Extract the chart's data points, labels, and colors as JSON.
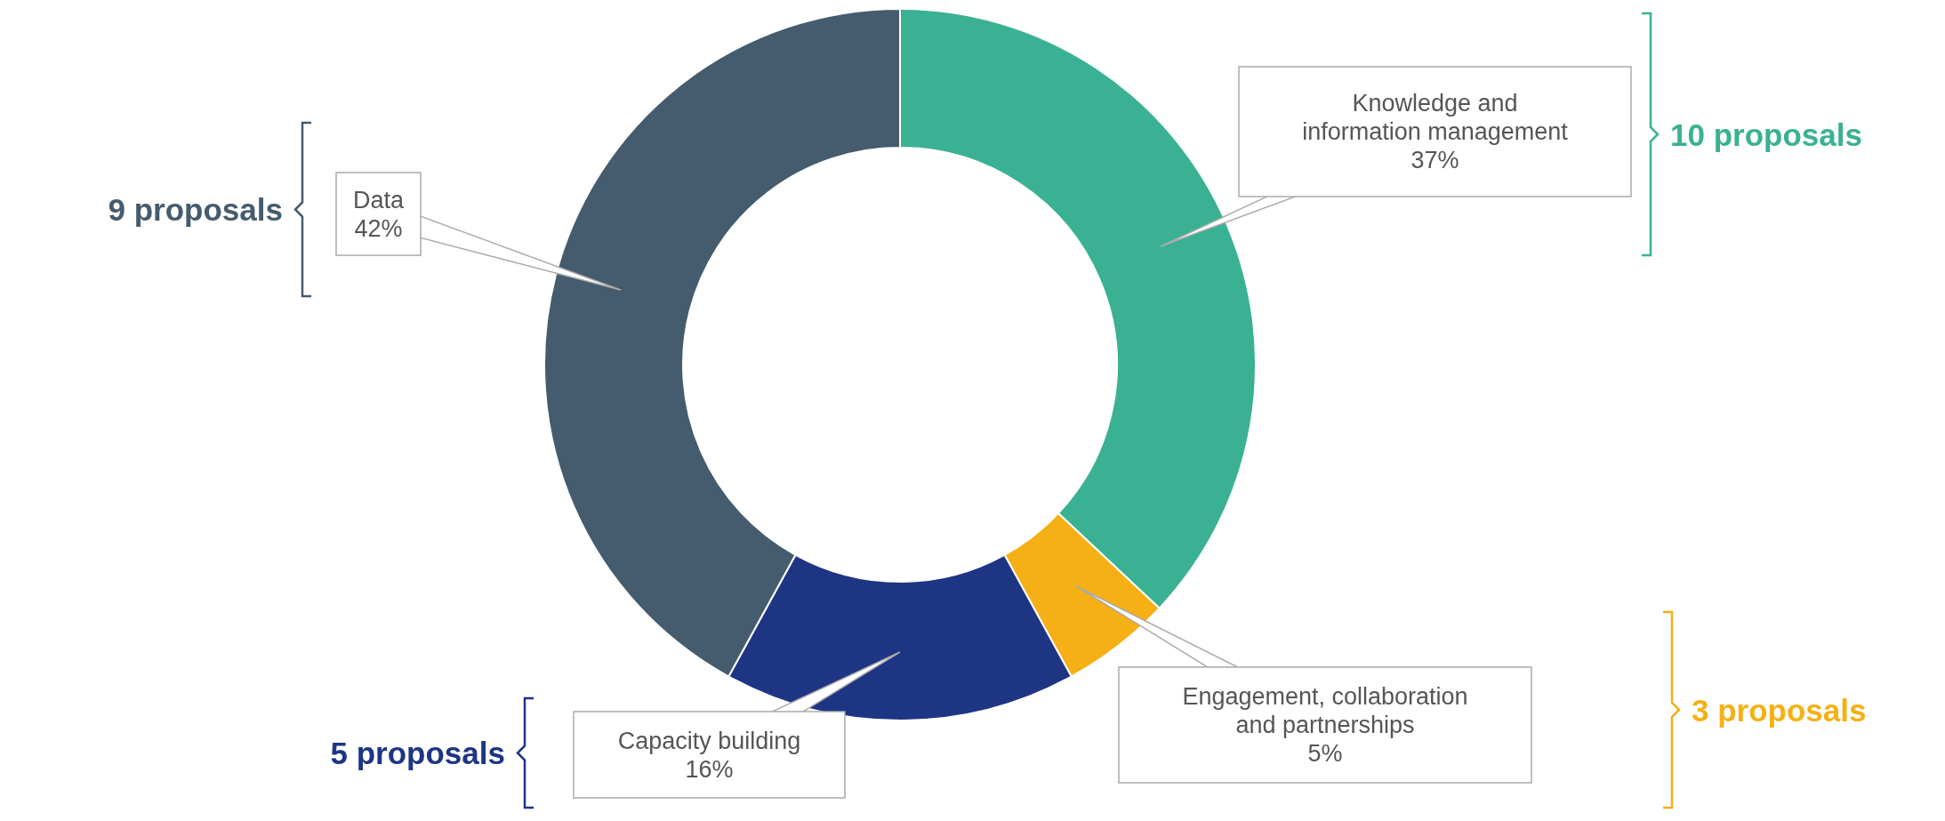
{
  "chart_data": {
    "type": "donut",
    "categories": [
      "Knowledge and information management",
      "Engagement, collaboration and partnerships",
      "Capacity building",
      "Data"
    ],
    "values": [
      37,
      5,
      16,
      42
    ],
    "value_labels": [
      "37%",
      "5%",
      "16%",
      "42%"
    ],
    "colors": [
      "#3ab193",
      "#f5b015",
      "#1e3584",
      "#455b6e"
    ],
    "annotations": [
      "10 proposals",
      "3 proposals",
      "5 proposals",
      "9 proposals"
    ]
  }
}
